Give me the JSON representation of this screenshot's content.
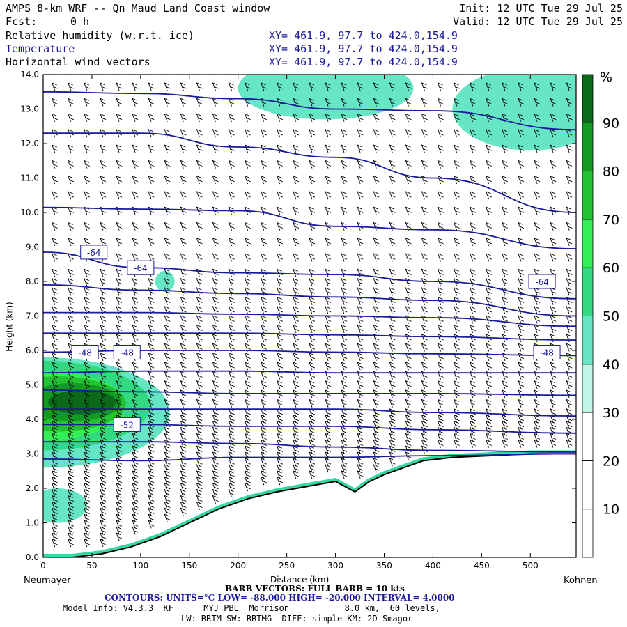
{
  "header": {
    "title": "AMPS 8-km WRF -- Qn Maud Land Coast window",
    "fcst_label": "Fcst:",
    "fcst_value": "0 h",
    "init": "Init: 12 UTC Tue 29 Jul 25",
    "valid": "Valid: 12 UTC Tue 29 Jul 25",
    "fields": [
      {
        "name": "Relative humidity (w.r.t. ice)",
        "xy": "XY= 461.9, 97.7 to 424.0,154.9"
      },
      {
        "name": "Temperature",
        "xy": "XY= 461.9, 97.7 to 424.0,154.9"
      },
      {
        "name": "Horizontal wind vectors",
        "xy": "XY= 461.9, 97.7 to 424.0,154.9"
      }
    ]
  },
  "footer": {
    "left_station": "Neumayer",
    "right_station": "Kohnen",
    "barb_note": "BARB VECTORS: FULL BARB = 10 kts",
    "contours_note": "CONTOURS: UNITS=°C LOW= -88.000 HIGH= -20.000 INTERVAL= 4.0000",
    "model_info_1": "Model Info: V4.3.3  KF      MYJ PBL  Morrison           8.0 km,  60 levels,",
    "model_info_2": "LW: RRTM SW: RRTMG  DIFF: simple KM: 2D Smagor"
  },
  "colors": {
    "contour": "#1a1a9a",
    "terrain": "#000000",
    "rh_levels": [
      "#ffffff",
      "#ffffff",
      "#ffffff",
      "#bff5e6",
      "#66e6c4",
      "#33d980",
      "#33ee55",
      "#22c233",
      "#129a22",
      "#0a6a1a"
    ]
  },
  "chart_data": {
    "type": "cross-section",
    "xlabel": "Distance (km)",
    "ylabel": "Height (km)",
    "xlim": [
      0,
      547
    ],
    "ylim": [
      0,
      14
    ],
    "x_ticks": [
      0,
      50,
      100,
      150,
      200,
      250,
      300,
      350,
      400,
      450,
      500
    ],
    "y_ticks": [
      "0.0",
      "1.0",
      "2.0",
      "3.0",
      "4.0",
      "5.0",
      "6.0",
      "7.0",
      "8.0",
      "9.0",
      "10.0",
      "11.0",
      "12.0",
      "13.0",
      "14.0"
    ],
    "colorbar": {
      "unit": "%",
      "labels": [
        10,
        20,
        30,
        40,
        50,
        60,
        70,
        80,
        90
      ],
      "bounds": [
        0,
        100
      ]
    },
    "terrain_profile": {
      "x": [
        0,
        30,
        60,
        90,
        120,
        150,
        180,
        210,
        240,
        260,
        280,
        300,
        320,
        335,
        350,
        370,
        390,
        420,
        460,
        500,
        547
      ],
      "y": [
        0.0,
        0.0,
        0.1,
        0.3,
        0.6,
        1.0,
        1.4,
        1.7,
        1.9,
        2.0,
        2.1,
        2.2,
        1.9,
        2.2,
        2.4,
        2.6,
        2.8,
        2.9,
        2.95,
        3.0,
        3.0
      ]
    },
    "temperature_contours": [
      {
        "x": [
          0,
          100,
          200,
          300,
          400,
          547
        ],
        "y": [
          13.5,
          13.45,
          13.3,
          13.0,
          12.95,
          12.4
        ]
      },
      {
        "x": [
          0,
          100,
          200,
          300,
          400,
          547
        ],
        "y": [
          12.3,
          12.3,
          11.9,
          11.6,
          11.0,
          10.0
        ]
      },
      {
        "x": [
          0,
          100,
          200,
          300,
          400,
          547
        ],
        "y": [
          10.15,
          10.1,
          10.05,
          9.6,
          9.5,
          8.95
        ]
      },
      {
        "x": [
          0,
          100,
          200,
          300,
          400,
          547
        ],
        "y": [
          8.85,
          8.4,
          8.25,
          8.2,
          8.0,
          7.5
        ]
      },
      {
        "x": [
          0,
          100,
          200,
          300,
          400,
          547
        ],
        "y": [
          7.9,
          7.75,
          7.65,
          7.55,
          7.45,
          7.0
        ]
      },
      {
        "x": [
          0,
          100,
          200,
          300,
          400,
          547
        ],
        "y": [
          7.1,
          7.1,
          7.05,
          7.0,
          6.95,
          6.7
        ]
      },
      {
        "x": [
          0,
          100,
          200,
          300,
          400,
          547
        ],
        "y": [
          6.5,
          6.5,
          6.5,
          6.45,
          6.4,
          6.3
        ]
      },
      {
        "x": [
          0,
          100,
          200,
          300,
          400,
          547
        ],
        "y": [
          5.95,
          6.0,
          6.0,
          5.95,
          5.9,
          5.85
        ]
      },
      {
        "x": [
          0,
          100,
          200,
          300,
          400,
          547
        ],
        "y": [
          5.35,
          5.4,
          5.4,
          5.35,
          5.35,
          5.35
        ]
      },
      {
        "x": [
          0,
          100,
          200,
          300,
          400,
          547
        ],
        "y": [
          4.85,
          4.8,
          4.75,
          4.75,
          4.75,
          4.7
        ]
      },
      {
        "x": [
          0,
          100,
          200,
          300,
          400,
          547
        ],
        "y": [
          4.3,
          4.3,
          4.3,
          4.3,
          4.2,
          4.1
        ]
      },
      {
        "x": [
          0,
          100,
          200,
          300,
          400,
          547
        ],
        "y": [
          3.85,
          3.85,
          3.8,
          3.8,
          3.7,
          3.6
        ]
      },
      {
        "x": [
          0,
          100,
          200,
          300,
          400,
          547
        ],
        "y": [
          3.35,
          3.35,
          3.3,
          3.2,
          3.1,
          3.05
        ]
      },
      {
        "x": [
          0,
          100,
          200,
          300,
          400,
          547
        ],
        "y": [
          2.85,
          2.8,
          2.9,
          2.9,
          2.95,
          3.0
        ]
      }
    ],
    "contour_labels": [
      {
        "text": "-64",
        "x": 52,
        "y": 8.85
      },
      {
        "text": "-64",
        "x": 100,
        "y": 8.4
      },
      {
        "text": "-64",
        "x": 512,
        "y": 8.0
      },
      {
        "text": "-48",
        "x": 43,
        "y": 5.95
      },
      {
        "text": "-48",
        "x": 86,
        "y": 5.95
      },
      {
        "text": "-48",
        "x": 517,
        "y": 5.95
      },
      {
        "text": "-52",
        "x": 86,
        "y": 3.85
      }
    ],
    "rh_fields": [
      {
        "level": 40,
        "x": 0,
        "y": 4.2,
        "rx": 130,
        "ry": 1.6
      },
      {
        "level": 50,
        "x": 0,
        "y": 4.4,
        "rx": 110,
        "ry": 1.3
      },
      {
        "level": 60,
        "x": 0,
        "y": 4.4,
        "rx": 85,
        "ry": 1.0
      },
      {
        "level": 70,
        "x": 15,
        "y": 4.45,
        "rx": 70,
        "ry": 0.8
      },
      {
        "level": 80,
        "x": 30,
        "y": 4.5,
        "rx": 50,
        "ry": 0.55
      },
      {
        "level": 90,
        "x": 40,
        "y": 4.5,
        "rx": 35,
        "ry": 0.35
      },
      {
        "level": 40,
        "x": 15,
        "y": 1.5,
        "rx": 30,
        "ry": 0.5
      },
      {
        "level": 40,
        "x": 290,
        "y": 13.6,
        "rx": 90,
        "ry": 0.9
      },
      {
        "level": 40,
        "x": 500,
        "y": 13.0,
        "rx": 80,
        "ry": 1.2
      },
      {
        "level": 40,
        "x": 125,
        "y": 8.0,
        "rx": 10,
        "ry": 0.3
      }
    ]
  }
}
